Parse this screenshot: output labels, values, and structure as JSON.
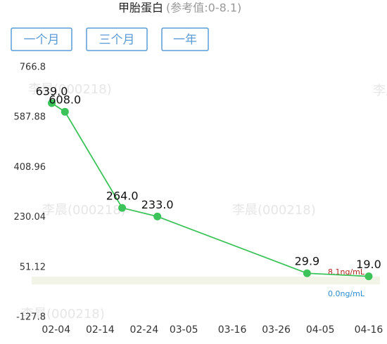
{
  "chart_data": {
    "type": "line",
    "title": "甲胎蛋白",
    "subtitle": "(参考值:0-8.1)",
    "buttons": [
      "一个月",
      "三个月",
      "一年"
    ],
    "watermark": "李晨(000218)",
    "x": [
      "02-03",
      "02-06",
      "02-19",
      "02-27",
      "04-02",
      "04-16"
    ],
    "series": [
      {
        "name": "甲胎蛋白",
        "color": "#3cc35a",
        "values": [
          639,
          608,
          264,
          233,
          29.9,
          19
        ],
        "value_labels": [
          "639.0",
          "608.0",
          "264.0",
          "233.0",
          "29.9",
          "19.0"
        ]
      }
    ],
    "xlim": [
      "02-01",
      "04-18"
    ],
    "xticks": [
      "02-04",
      "02-14",
      "02-24",
      "03-05",
      "03-16",
      "03-26",
      "04-05",
      "04-16"
    ],
    "ylim": [
      -127.8,
      766.8
    ],
    "yticks": [
      766.8,
      587.88,
      408.96,
      230.04,
      51.12,
      -127.8
    ],
    "reference": {
      "low": 0,
      "high": 8.1,
      "low_label": "0.0ng/mL",
      "high_label": "8.1ng/mL",
      "color": "#f1f4e6"
    },
    "grid": false
  }
}
